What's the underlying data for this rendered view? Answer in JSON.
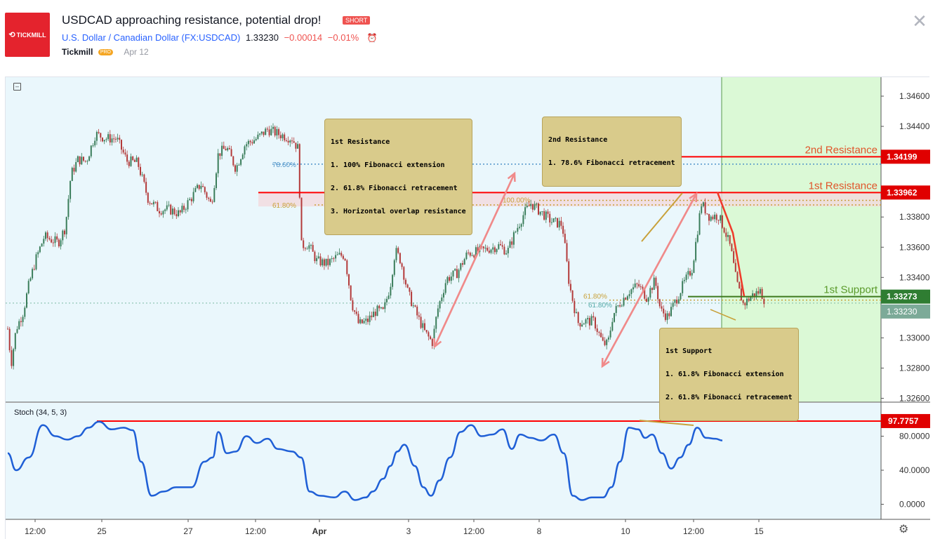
{
  "header": {
    "logo_text": "TICKMILL",
    "title": "USDCAD approaching resistance, potential drop!",
    "badge": "SHORT",
    "symbol_name": "U.S. Dollar / Canadian Dollar",
    "symbol_code": "(FX:USDCAD)",
    "price": "1.33230",
    "change": "−0.00014",
    "change_pct": "−0.01%",
    "author": "Tickmill",
    "author_badge": "PRO",
    "date": "Apr 12"
  },
  "colors": {
    "background": "#eaf7fc",
    "highlight_zone": "#dbf9d6",
    "bull_candle": "#3a7d5a",
    "bear_candle": "#b33a3a",
    "resistance": "#ff0000",
    "support": "#00a000",
    "support_dark": "#3d7a1e",
    "stoch_line": "#1f5fd6",
    "fib_gold": "#c8a13a",
    "fib_blue": "#4f94c9",
    "arrow_pink": "#f08a8a",
    "arrow_red": "#ef3a2a",
    "note_bg": "#d9cb8b"
  },
  "annotations": {
    "resistance1": {
      "title": "1st Resistance",
      "lines": [
        "1. 100% Fibonacci extension",
        "2. 61.8% Fibonacci retracement",
        "3. Horizontal overlap resistance"
      ]
    },
    "resistance2": {
      "title": "2nd Resistance",
      "lines": [
        "1. 78.6% Fibonacci retracement"
      ]
    },
    "support1": {
      "title": "1st Support",
      "lines": [
        "1. 61.8% Fibonacci extension",
        "2. 61.8% Fibonacci retracement"
      ]
    },
    "labels": {
      "resistance2": "2nd Resistance",
      "resistance1": "1st Resistance",
      "support1": "1st Support"
    },
    "fib_labels": {
      "r786": "78.60%",
      "r618": "61.80%",
      "e100": "100.00%",
      "s618a": "61.80%",
      "s618b": "61.80%"
    }
  },
  "chart_data": {
    "type": "candlestick",
    "symbol": "FX:USDCAD",
    "y_ticks": [
      "1.34600",
      "1.34400",
      "1.34200",
      "1.33800",
      "1.33600",
      "1.33400",
      "1.33000",
      "1.32800",
      "1.32600"
    ],
    "y_tick_values": [
      1.346,
      1.344,
      1.342,
      1.338,
      1.336,
      1.334,
      1.33,
      1.328,
      1.326
    ],
    "x_ticks": [
      "12:00",
      "25",
      "27",
      "12:00",
      "Apr",
      "3",
      "12:00",
      "8",
      "10",
      "12:00",
      "15"
    ],
    "ylim": [
      1.326,
      1.347
    ],
    "price_levels": {
      "resistance_2": "1.34199",
      "resistance_1": "1.33962",
      "support_1": "1.33273",
      "last_price": "1.33230"
    },
    "price_level_values": {
      "resistance_2": 1.34199,
      "resistance_1": 1.33962,
      "support_1": 1.33273,
      "last_price": 1.3323
    },
    "fib_levels": {
      "retrace_786": 1.3415,
      "retrace_618": 1.3388,
      "ext_100": 1.3391,
      "support_618": 1.3325
    },
    "close_path": [
      {
        "t": 0,
        "p": 1.3306
      },
      {
        "t": 5,
        "p": 1.3283
      },
      {
        "t": 12,
        "p": 1.3306
      },
      {
        "t": 22,
        "p": 1.3317
      },
      {
        "t": 30,
        "p": 1.3335
      },
      {
        "t": 40,
        "p": 1.3352
      },
      {
        "t": 52,
        "p": 1.3367
      },
      {
        "t": 62,
        "p": 1.3365
      },
      {
        "t": 72,
        "p": 1.3363
      },
      {
        "t": 82,
        "p": 1.3373
      },
      {
        "t": 90,
        "p": 1.3408
      },
      {
        "t": 100,
        "p": 1.3418
      },
      {
        "t": 112,
        "p": 1.3417
      },
      {
        "t": 125,
        "p": 1.3435
      },
      {
        "t": 140,
        "p": 1.3432
      },
      {
        "t": 155,
        "p": 1.3432
      },
      {
        "t": 170,
        "p": 1.3417
      },
      {
        "t": 185,
        "p": 1.3416
      },
      {
        "t": 200,
        "p": 1.3392
      },
      {
        "t": 215,
        "p": 1.3385
      },
      {
        "t": 230,
        "p": 1.3385
      },
      {
        "t": 245,
        "p": 1.3382
      },
      {
        "t": 262,
        "p": 1.3393
      },
      {
        "t": 275,
        "p": 1.3402
      },
      {
        "t": 290,
        "p": 1.3388
      },
      {
        "t": 300,
        "p": 1.3422
      },
      {
        "t": 312,
        "p": 1.3426
      },
      {
        "t": 325,
        "p": 1.3412
      },
      {
        "t": 338,
        "p": 1.3428
      },
      {
        "t": 355,
        "p": 1.3432
      },
      {
        "t": 370,
        "p": 1.3438
      },
      {
        "t": 385,
        "p": 1.3435
      },
      {
        "t": 405,
        "p": 1.3432
      },
      {
        "t": 414,
        "p": 1.3425
      },
      {
        "t": 418,
        "p": 1.3361
      },
      {
        "t": 428,
        "p": 1.3362
      },
      {
        "t": 440,
        "p": 1.3351
      },
      {
        "t": 455,
        "p": 1.3349
      },
      {
        "t": 470,
        "p": 1.3354
      },
      {
        "t": 480,
        "p": 1.3355
      },
      {
        "t": 490,
        "p": 1.3323
      },
      {
        "t": 500,
        "p": 1.3309
      },
      {
        "t": 512,
        "p": 1.3311
      },
      {
        "t": 525,
        "p": 1.3318
      },
      {
        "t": 535,
        "p": 1.3317
      },
      {
        "t": 545,
        "p": 1.3335
      },
      {
        "t": 552,
        "p": 1.3358
      },
      {
        "t": 560,
        "p": 1.3351
      },
      {
        "t": 570,
        "p": 1.333
      },
      {
        "t": 582,
        "p": 1.3316
      },
      {
        "t": 595,
        "p": 1.3303
      },
      {
        "t": 605,
        "p": 1.3297
      },
      {
        "t": 612,
        "p": 1.3318
      },
      {
        "t": 625,
        "p": 1.3339
      },
      {
        "t": 640,
        "p": 1.3343
      },
      {
        "t": 655,
        "p": 1.3356
      },
      {
        "t": 670,
        "p": 1.3357
      },
      {
        "t": 685,
        "p": 1.3359
      },
      {
        "t": 700,
        "p": 1.3361
      },
      {
        "t": 712,
        "p": 1.3357
      },
      {
        "t": 722,
        "p": 1.3369
      },
      {
        "t": 735,
        "p": 1.3382
      },
      {
        "t": 745,
        "p": 1.3389
      },
      {
        "t": 760,
        "p": 1.3383
      },
      {
        "t": 775,
        "p": 1.3377
      },
      {
        "t": 790,
        "p": 1.3375
      },
      {
        "t": 800,
        "p": 1.3335
      },
      {
        "t": 812,
        "p": 1.331
      },
      {
        "t": 822,
        "p": 1.3311
      },
      {
        "t": 835,
        "p": 1.3311
      },
      {
        "t": 848,
        "p": 1.3296
      },
      {
        "t": 855,
        "p": 1.3296
      },
      {
        "t": 862,
        "p": 1.3315
      },
      {
        "t": 872,
        "p": 1.3323
      },
      {
        "t": 885,
        "p": 1.3331
      },
      {
        "t": 898,
        "p": 1.3335
      },
      {
        "t": 910,
        "p": 1.3327
      },
      {
        "t": 922,
        "p": 1.3338
      },
      {
        "t": 930,
        "p": 1.3318
      },
      {
        "t": 940,
        "p": 1.3314
      },
      {
        "t": 952,
        "p": 1.3325
      },
      {
        "t": 962,
        "p": 1.3335
      },
      {
        "t": 975,
        "p": 1.3346
      },
      {
        "t": 982,
        "p": 1.3369
      },
      {
        "t": 988,
        "p": 1.3389
      },
      {
        "t": 1000,
        "p": 1.338
      },
      {
        "t": 1012,
        "p": 1.3381
      },
      {
        "t": 1020,
        "p": 1.3373
      },
      {
        "t": 1030,
        "p": 1.3359
      },
      {
        "t": 1038,
        "p": 1.3337
      },
      {
        "t": 1048,
        "p": 1.3322
      },
      {
        "t": 1060,
        "p": 1.3328
      },
      {
        "t": 1072,
        "p": 1.3331
      },
      {
        "t": 1080,
        "p": 1.3323
      }
    ],
    "stochastic": {
      "label": "Stoch (34, 5, 3)",
      "y_ticks": [
        "80.0000",
        "40.0000",
        "0.0000"
      ],
      "y_tick_values": [
        80,
        40,
        0
      ],
      "ylim": [
        -5,
        100
      ],
      "level_value": 97.7757,
      "level_label": "97.7757",
      "values": [
        {
          "t": 0,
          "v": 60
        },
        {
          "t": 12,
          "v": 40
        },
        {
          "t": 30,
          "v": 55
        },
        {
          "t": 50,
          "v": 93
        },
        {
          "t": 68,
          "v": 80
        },
        {
          "t": 85,
          "v": 76
        },
        {
          "t": 100,
          "v": 80
        },
        {
          "t": 115,
          "v": 90
        },
        {
          "t": 130,
          "v": 97
        },
        {
          "t": 148,
          "v": 88
        },
        {
          "t": 165,
          "v": 90
        },
        {
          "t": 178,
          "v": 87
        },
        {
          "t": 190,
          "v": 50
        },
        {
          "t": 205,
          "v": 10
        },
        {
          "t": 222,
          "v": 15
        },
        {
          "t": 240,
          "v": 20
        },
        {
          "t": 262,
          "v": 20
        },
        {
          "t": 280,
          "v": 50
        },
        {
          "t": 292,
          "v": 55
        },
        {
          "t": 300,
          "v": 85
        },
        {
          "t": 312,
          "v": 60
        },
        {
          "t": 325,
          "v": 62
        },
        {
          "t": 340,
          "v": 80
        },
        {
          "t": 355,
          "v": 72
        },
        {
          "t": 370,
          "v": 77
        },
        {
          "t": 385,
          "v": 65
        },
        {
          "t": 405,
          "v": 62
        },
        {
          "t": 418,
          "v": 55
        },
        {
          "t": 430,
          "v": 15
        },
        {
          "t": 445,
          "v": 10
        },
        {
          "t": 465,
          "v": 8
        },
        {
          "t": 480,
          "v": 15
        },
        {
          "t": 495,
          "v": 5
        },
        {
          "t": 510,
          "v": 8
        },
        {
          "t": 520,
          "v": 15
        },
        {
          "t": 535,
          "v": 30
        },
        {
          "t": 545,
          "v": 45
        },
        {
          "t": 555,
          "v": 62
        },
        {
          "t": 565,
          "v": 70
        },
        {
          "t": 580,
          "v": 45
        },
        {
          "t": 592,
          "v": 20
        },
        {
          "t": 603,
          "v": 10
        },
        {
          "t": 615,
          "v": 28
        },
        {
          "t": 630,
          "v": 55
        },
        {
          "t": 645,
          "v": 85
        },
        {
          "t": 660,
          "v": 93
        },
        {
          "t": 675,
          "v": 80
        },
        {
          "t": 690,
          "v": 82
        },
        {
          "t": 705,
          "v": 88
        },
        {
          "t": 718,
          "v": 65
        },
        {
          "t": 730,
          "v": 82
        },
        {
          "t": 745,
          "v": 78
        },
        {
          "t": 760,
          "v": 75
        },
        {
          "t": 778,
          "v": 82
        },
        {
          "t": 792,
          "v": 60
        },
        {
          "t": 805,
          "v": 10
        },
        {
          "t": 818,
          "v": 5
        },
        {
          "t": 832,
          "v": 8
        },
        {
          "t": 848,
          "v": 8
        },
        {
          "t": 860,
          "v": 20
        },
        {
          "t": 872,
          "v": 50
        },
        {
          "t": 885,
          "v": 90
        },
        {
          "t": 898,
          "v": 88
        },
        {
          "t": 908,
          "v": 78
        },
        {
          "t": 918,
          "v": 82
        },
        {
          "t": 932,
          "v": 60
        },
        {
          "t": 945,
          "v": 42
        },
        {
          "t": 958,
          "v": 55
        },
        {
          "t": 970,
          "v": 70
        },
        {
          "t": 982,
          "v": 90
        },
        {
          "t": 995,
          "v": 78
        },
        {
          "t": 1008,
          "v": 77
        },
        {
          "t": 1018,
          "v": 75
        }
      ]
    }
  }
}
